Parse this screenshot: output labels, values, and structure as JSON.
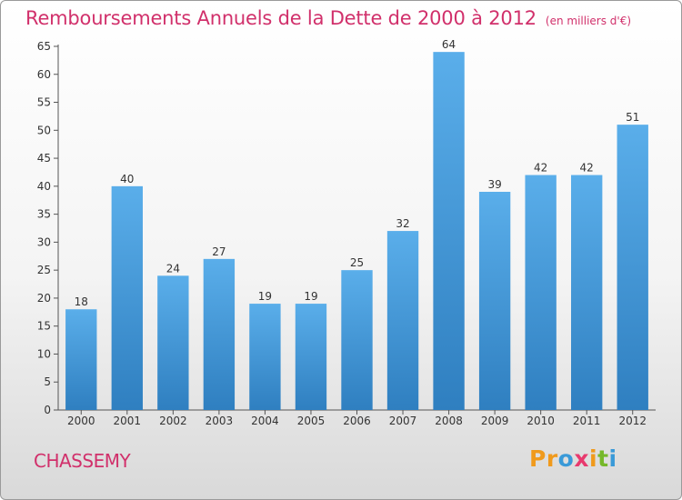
{
  "header": {
    "title": "Remboursements Annuels de la Dette de 2000 à 2012",
    "unit": "(en milliers d'€)"
  },
  "footer": {
    "town": "CHASSEMY",
    "logo_text": "Proxiti"
  },
  "colors": {
    "title": "#d1306b",
    "bar_top": "#5aaeea",
    "bar_bottom": "#2f7fc0",
    "logo": [
      "#f09a1c",
      "#f09a1c",
      "#3a9ad8",
      "#e83a6e",
      "#f09a1c",
      "#76b82a",
      "#3a9ad8"
    ]
  },
  "chart_data": {
    "type": "bar",
    "categories": [
      "2000",
      "2001",
      "2002",
      "2003",
      "2004",
      "2005",
      "2006",
      "2007",
      "2008",
      "2009",
      "2010",
      "2011",
      "2012"
    ],
    "values": [
      18,
      40,
      24,
      27,
      19,
      19,
      25,
      32,
      64,
      39,
      42,
      42,
      51
    ],
    "ylim": [
      0,
      65
    ],
    "yticks": [
      0,
      5,
      10,
      15,
      20,
      25,
      30,
      35,
      40,
      45,
      50,
      55,
      60,
      65
    ],
    "grid": false,
    "xlabel": "",
    "ylabel": ""
  }
}
